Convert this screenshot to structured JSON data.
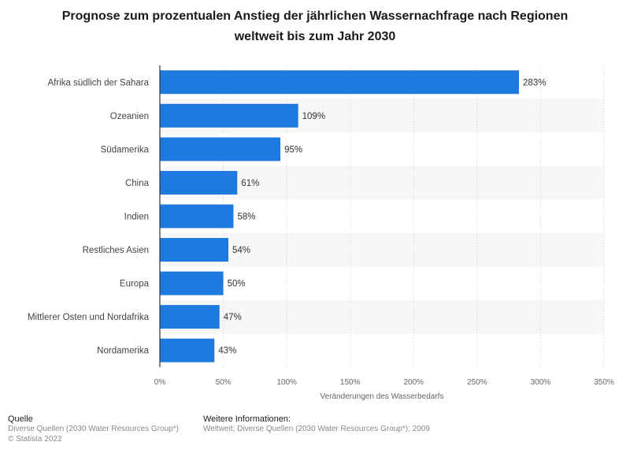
{
  "title_line1": "Prognose zum prozentualen Anstieg der jährlichen Wassernachfrage nach Regionen",
  "title_line2": "weltweit bis zum Jahr 2030",
  "chart_data": {
    "type": "bar",
    "orientation": "horizontal",
    "title": "Prognose zum prozentualen Anstieg der jährlichen Wassernachfrage nach Regionen weltweit bis zum Jahr 2030",
    "categories": [
      "Afrika südlich der Sahara",
      "Ozeanien",
      "Südamerika",
      "China",
      "Indien",
      "Restliches Asien",
      "Europa",
      "Mittlerer Osten und Nordafrika",
      "Nordamerika"
    ],
    "values": [
      283,
      109,
      95,
      61,
      58,
      54,
      50,
      47,
      43
    ],
    "value_labels": [
      "283%",
      "109%",
      "95%",
      "61%",
      "58%",
      "54%",
      "50%",
      "47%",
      "43%"
    ],
    "xlabel": "Veränderungen des Wasserbedarfs",
    "ylabel": "",
    "xlim": [
      0,
      350
    ],
    "xticks": [
      0,
      50,
      100,
      150,
      200,
      250,
      300,
      350
    ],
    "xtick_labels": [
      "0%",
      "50%",
      "100%",
      "150%",
      "200%",
      "250%",
      "300%",
      "350%"
    ],
    "bar_color": "#1f7ae0",
    "grid": true
  },
  "footer": {
    "source_heading": "Quelle",
    "source_text": "Diverse Quellen (2030 Water Resources Group*)",
    "copyright": "© Statista 2022",
    "info_heading": "Weitere Informationen:",
    "info_text": "Weltweit; Diverse Quellen (2030 Water Resources Group*); 2009"
  }
}
